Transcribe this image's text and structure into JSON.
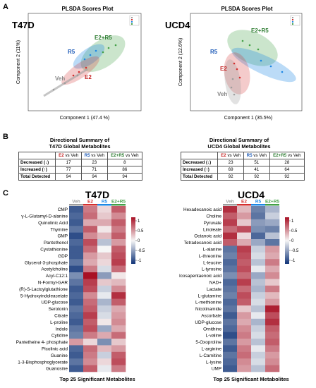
{
  "panels": {
    "a": "A",
    "b": "B",
    "c": "C"
  },
  "scores": [
    {
      "title": "PLSDA Scores Plot",
      "cell_line": "T47D",
      "xlabel": "Component 1 (47.4 %)",
      "ylabel": "Component 2 (11%)",
      "groups": [
        {
          "name": "Veh",
          "color": "#9e9e9e"
        },
        {
          "name": "E2",
          "color": "#d32f2f"
        },
        {
          "name": "R5",
          "color": "#1e88e5"
        },
        {
          "name": "E2+R5",
          "color": "#43a047"
        }
      ]
    },
    {
      "title": "PLSDA Scores Plot",
      "cell_line": "UCD4",
      "xlabel": "Component 1 (35.5%)",
      "ylabel": "Component 2 (12.6%)",
      "groups": [
        {
          "name": "Veh",
          "color": "#9e9e9e"
        },
        {
          "name": "E2",
          "color": "#d32f2f"
        },
        {
          "name": "R5",
          "color": "#1e88e5"
        },
        {
          "name": "E2+R5",
          "color": "#43a047"
        }
      ]
    }
  ],
  "summaries": [
    {
      "title_line1": "Directional Summary of",
      "title_line2": "T47D Global Metabolites",
      "headers": [
        "E2",
        "R5",
        "E2+R5"
      ],
      "vs": "vs",
      "ref": "Veh",
      "rows": [
        {
          "label": "Decreased (↓)",
          "values": [
            "17",
            "23",
            "8"
          ]
        },
        {
          "label": "Increased (↑)",
          "values": [
            "77",
            "71",
            "86"
          ]
        },
        {
          "label": "Total Detected",
          "values": [
            "94",
            "94",
            "94"
          ]
        }
      ]
    },
    {
      "title_line1": "Directional Summary of",
      "title_line2": "UCD4 Global Metabolites",
      "headers": [
        "E2",
        "R5",
        "E2+R5"
      ],
      "vs": "vs",
      "ref": "Veh",
      "rows": [
        {
          "label": "Decreased (↓)",
          "values": [
            "23",
            "51",
            "28"
          ]
        },
        {
          "label": "Increased (↑)",
          "values": [
            "69",
            "41",
            "64"
          ]
        },
        {
          "label": "Total Detected",
          "values": [
            "92",
            "92",
            "92"
          ]
        }
      ]
    }
  ],
  "chart_data": [
    {
      "type": "heatmap",
      "title": "T47D",
      "columns": [
        "Veh",
        "E2",
        "R5",
        "E2+R5"
      ],
      "column_colors": [
        "#9e9e9e",
        "#d32f2f",
        "#1e88e5",
        "#43a047"
      ],
      "rows": [
        "CMP",
        "γ-L-Glutamyl-D-alanine",
        "Quinolinic Acid",
        "Thymine",
        "GMP",
        "Pantothenol",
        "Cystathionine",
        "GDP",
        "Glycerol-3-phosphate",
        "Acetylcholine",
        "Acyl-C12:1",
        "N-Formyl-GAR",
        "(R)-S-Lactoylglutathione",
        "5-Hydroxyindoleacetate",
        "UDP-glucose",
        "Serotonin",
        "Citrate",
        "L-proline",
        "Indole",
        "Cytidine",
        "Pantetheine 4- phosphate",
        "Picolinic acid",
        "Guanine",
        "1-3-Bisphosphoglycerate",
        "Guanosine"
      ],
      "values": [
        [
          -1.2,
          0.8,
          0.2,
          1.0
        ],
        [
          -1.1,
          0.9,
          0.3,
          0.7
        ],
        [
          -1.2,
          0.5,
          0.5,
          1.0
        ],
        [
          -1.0,
          1.0,
          0.1,
          0.8
        ],
        [
          -1.3,
          0.7,
          0.4,
          1.0
        ],
        [
          -1.1,
          1.1,
          -0.4,
          0.6
        ],
        [
          -1.2,
          0.9,
          0.0,
          1.0
        ],
        [
          -1.2,
          0.6,
          0.3,
          1.1
        ],
        [
          -1.0,
          0.5,
          0.2,
          1.2
        ],
        [
          -1.3,
          0.8,
          -0.2,
          0.9
        ],
        [
          -0.8,
          1.5,
          -0.7,
          0.1
        ],
        [
          -1.0,
          1.2,
          0.3,
          0.4
        ],
        [
          -1.2,
          1.1,
          -0.3,
          0.7
        ],
        [
          -1.1,
          0.7,
          -0.1,
          1.3
        ],
        [
          -1.2,
          0.9,
          -0.5,
          1.0
        ],
        [
          -1.0,
          1.0,
          -0.3,
          0.5
        ],
        [
          -1.1,
          1.2,
          -0.2,
          0.6
        ],
        [
          -1.2,
          1.0,
          0.1,
          0.7
        ],
        [
          -1.0,
          1.1,
          -0.6,
          0.5
        ],
        [
          -0.9,
          0.8,
          0.5,
          0.9
        ],
        [
          0.6,
          0.2,
          -0.8,
          0.3
        ],
        [
          -1.1,
          0.9,
          0.4,
          0.6
        ],
        [
          -1.2,
          0.8,
          -0.3,
          1.0
        ],
        [
          -1.0,
          0.7,
          0.2,
          1.1
        ],
        [
          -1.2,
          1.0,
          -0.1,
          0.8
        ]
      ],
      "scale": {
        "max": 1,
        "min": -1,
        "ticks": [
          "1",
          "0.5",
          "0",
          "-0.5",
          "-1"
        ]
      },
      "footer": "Top 25 Significant Metabolites"
    },
    {
      "type": "heatmap",
      "title": "UCD4",
      "columns": [
        "Veh",
        "E2",
        "R5",
        "E2+R5"
      ],
      "column_colors": [
        "#9e9e9e",
        "#d32f2f",
        "#1e88e5",
        "#43a047"
      ],
      "rows": [
        "Hexadecanoic acid",
        "Choline",
        "Pyruvate",
        "Linoleate",
        "Octanoic acid",
        "Tetradecanoic acid",
        "L-alanine",
        "L-threonine",
        "L-leucine",
        "L-tyrosine",
        "Icosapentaenoic acid",
        "NAD+",
        "Lactate",
        "L-glutamine",
        "L-methionine",
        "Nicotinamide",
        "Ascorbate",
        "UDP-glucose",
        "Ornithine",
        "L-valine",
        "5-Oxoproline",
        "L-arginine",
        "L-Carnitine",
        "L-lysine",
        "UMP"
      ],
      "values": [
        [
          1.3,
          0.4,
          -0.9,
          -0.5
        ],
        [
          1.0,
          0.6,
          -1.0,
          -0.3
        ],
        [
          1.2,
          0.3,
          -0.7,
          -0.6
        ],
        [
          0.9,
          1.1,
          -0.8,
          -0.9
        ],
        [
          1.3,
          0.2,
          -1.1,
          -0.4
        ],
        [
          1.0,
          0.5,
          -0.6,
          -1.0
        ],
        [
          -1.0,
          1.2,
          -0.3,
          0.6
        ],
        [
          -0.9,
          1.1,
          -0.2,
          0.5
        ],
        [
          -1.1,
          1.0,
          -0.4,
          0.8
        ],
        [
          -1.0,
          1.1,
          -0.1,
          0.5
        ],
        [
          -0.8,
          0.9,
          -0.6,
          0.7
        ],
        [
          -1.1,
          1.2,
          -0.4,
          0.3
        ],
        [
          -1.0,
          0.9,
          -0.5,
          0.8
        ],
        [
          -0.9,
          1.1,
          -0.3,
          0.4
        ],
        [
          -1.1,
          1.0,
          -0.2,
          0.6
        ],
        [
          -1.0,
          0.3,
          -0.4,
          1.4
        ],
        [
          -1.2,
          0.6,
          -0.1,
          1.1
        ],
        [
          -1.0,
          0.5,
          -0.5,
          1.3
        ],
        [
          -1.1,
          0.7,
          -0.3,
          1.0
        ],
        [
          -1.3,
          0.8,
          -0.2,
          0.9
        ],
        [
          -1.0,
          0.6,
          -0.4,
          1.0
        ],
        [
          -1.2,
          0.8,
          -0.1,
          0.8
        ],
        [
          -1.0,
          0.9,
          -0.3,
          0.6
        ],
        [
          -1.1,
          0.7,
          -0.2,
          0.7
        ],
        [
          -1.2,
          0.6,
          -0.4,
          0.9
        ]
      ],
      "scale": {
        "max": 1,
        "min": -1,
        "ticks": [
          "1",
          "0.5",
          "0",
          "-0.5",
          "-1"
        ]
      },
      "footer": "Top 25 Significant Metabolites"
    }
  ]
}
